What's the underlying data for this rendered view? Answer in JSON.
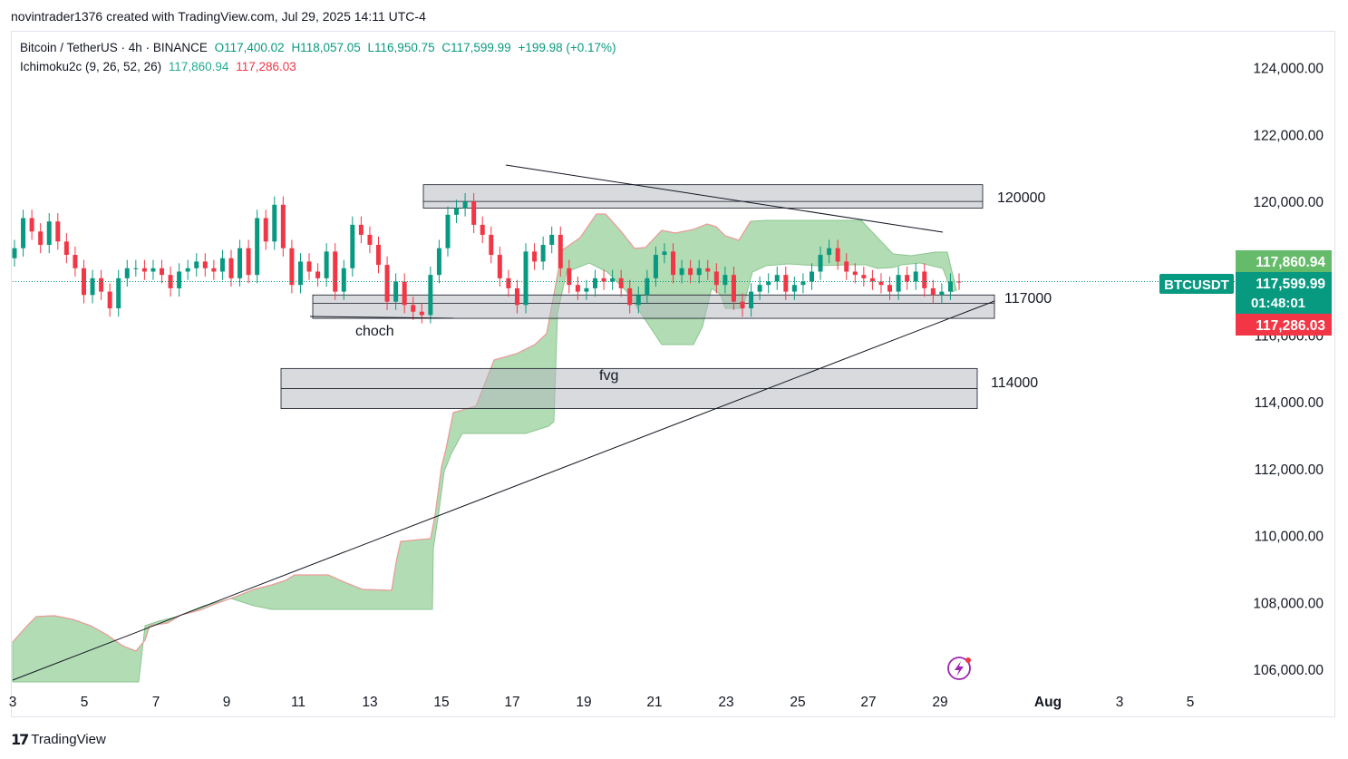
{
  "header": {
    "attribution": "novintrader1376 created with TradingView.com, Jul 29, 2025 14:11 UTC-4"
  },
  "legend": {
    "symbol": "Bitcoin / TetherUS · 4h · BINANCE",
    "open": "O117,400.02",
    "high": "H118,057.05",
    "low": "L116,950.75",
    "close": "C117,599.99",
    "change": "+199.98 (+0.17%)",
    "indicator": "Ichimoku2c (9, 26, 52, 26)",
    "ind_val1": "117,860.94",
    "ind_val2": "117,286.03"
  },
  "footer": {
    "brand": "TradingView",
    "logo_text": "17"
  },
  "chart_data": {
    "type": "candlestick",
    "symbol": "BTCUSDT",
    "timeframe": "4h",
    "exchange": "BINANCE",
    "y_ticks": [
      106000,
      108000,
      110000,
      112000,
      114000,
      116000,
      118000,
      120000,
      122000,
      124000
    ],
    "y_tick_labels": [
      "106,000.00",
      "108,000.00",
      "110,000.00",
      "112,000.00",
      "114,000.00",
      "116,000.00",
      "118,000.00",
      "120,000.00",
      "122,000.00",
      "124,000.00"
    ],
    "x_tick_labels": [
      "3",
      "5",
      "7",
      "9",
      "11",
      "13",
      "15",
      "17",
      "19",
      "21",
      "23",
      "25",
      "27",
      "29",
      "Aug",
      "3",
      "5"
    ],
    "price_labels": {
      "symbol_tag": "BTCUSDT",
      "tenkan": "117,860.94",
      "last": "117,599.99",
      "countdown": "01:48:01",
      "kijun": "117,286.03"
    },
    "zones": [
      {
        "label": "120000",
        "top": 120500,
        "mid": 120000,
        "bottom": 119800
      },
      {
        "label": "117000",
        "top": 117200,
        "mid": 116950,
        "bottom": 116500
      },
      {
        "label": "114000",
        "top": 115000,
        "mid": 114400,
        "bottom": 113800
      }
    ],
    "annotations": {
      "choch": "choch",
      "fvg": "fvg"
    },
    "closes": [
      118600,
      119500,
      119100,
      118700,
      119400,
      118800,
      118400,
      118000,
      117200,
      117700,
      117300,
      116800,
      117700,
      118000,
      118000,
      117900,
      118000,
      117800,
      117400,
      117900,
      118000,
      118200,
      118000,
      117900,
      118300,
      117700,
      118600,
      117800,
      119500,
      118800,
      119900,
      118600,
      117500,
      118200,
      117900,
      117700,
      118500,
      117300,
      118000,
      119300,
      119000,
      118700,
      118100,
      117000,
      117600,
      116900,
      116700,
      116600,
      117800,
      118600,
      119600,
      119800,
      120000,
      119300,
      119000,
      118400,
      117700,
      117400,
      116900,
      118500,
      118200,
      118700,
      119000,
      118000,
      117500,
      117300,
      117400,
      117700,
      117600,
      117700,
      117400,
      116900,
      117200,
      117700,
      118400,
      118500,
      117800,
      118000,
      117800,
      118000,
      117900,
      117500,
      117800,
      117000,
      116800,
      117300,
      117500,
      117600,
      117800,
      117300,
      117500,
      117600,
      117900,
      118400,
      118600,
      118200,
      117900,
      117800,
      117700,
      117600,
      117500,
      117300,
      117800,
      117600,
      117900,
      117400,
      117200,
      117300,
      117600,
      117599.99
    ],
    "tenkan_last": 117860.94,
    "kijun_last": 117286.03
  }
}
